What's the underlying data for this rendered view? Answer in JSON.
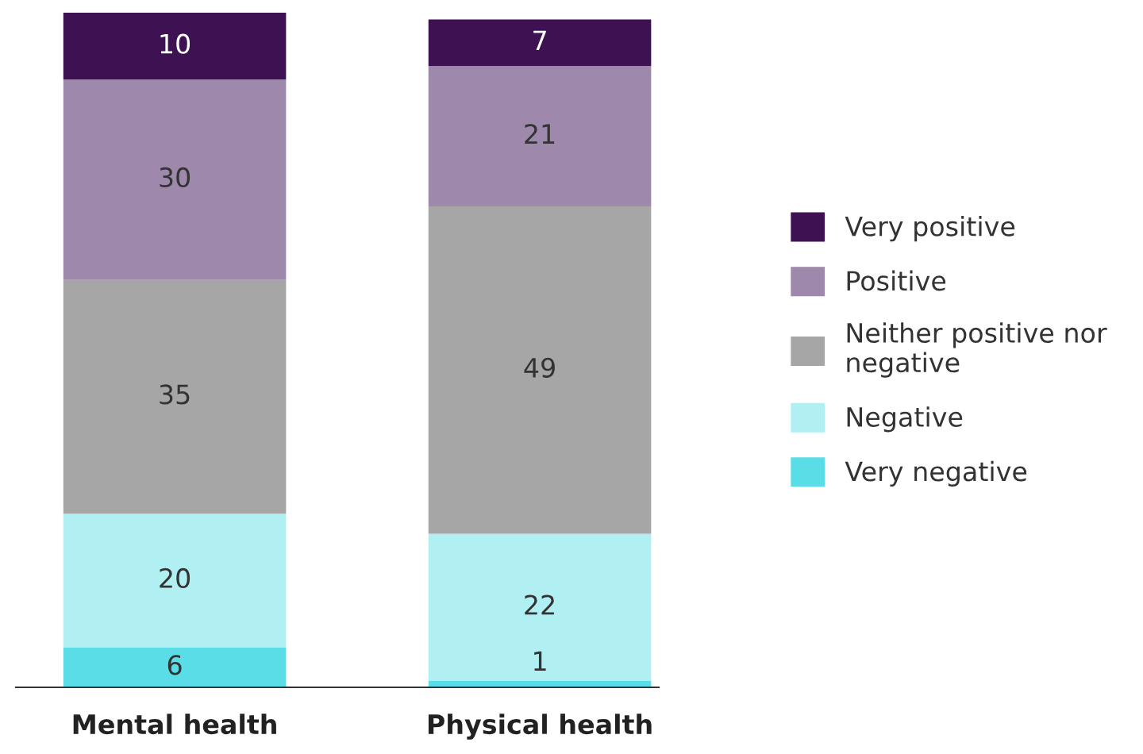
{
  "chart_data": {
    "type": "bar",
    "stacked": true,
    "categories": [
      "Mental health",
      "Physical health"
    ],
    "series": [
      {
        "name": "Very negative",
        "color": "#5adde6",
        "values": [
          6,
          1
        ]
      },
      {
        "name": "Negative",
        "color": "#b0f0f3",
        "values": [
          20,
          22
        ]
      },
      {
        "name": "Neither positive nor\nnegative",
        "color": "#a6a6a6",
        "values": [
          35,
          49
        ]
      },
      {
        "name": "Positive",
        "color": "#9e88ab",
        "values": [
          30,
          21
        ]
      },
      {
        "name": "Very positive",
        "color": "#3d1152",
        "values": [
          10,
          7
        ]
      }
    ],
    "data_labels": true,
    "legend": "right",
    "grid": false
  }
}
